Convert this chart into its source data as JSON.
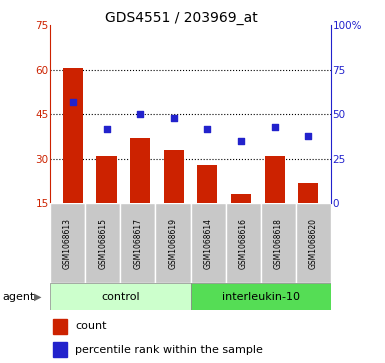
{
  "title": "GDS4551 / 203969_at",
  "samples": [
    "GSM1068613",
    "GSM1068615",
    "GSM1068617",
    "GSM1068619",
    "GSM1068614",
    "GSM1068616",
    "GSM1068618",
    "GSM1068620"
  ],
  "counts": [
    60.5,
    31.0,
    37.0,
    33.0,
    28.0,
    18.0,
    31.0,
    22.0
  ],
  "percentiles": [
    57,
    42,
    50,
    48,
    42,
    35,
    43,
    38
  ],
  "ylim_left": [
    15,
    75
  ],
  "ylim_right": [
    0,
    100
  ],
  "yticks_left": [
    15,
    30,
    45,
    60,
    75
  ],
  "yticks_right": [
    0,
    25,
    50,
    75,
    100
  ],
  "bar_color": "#cc2200",
  "dot_color": "#2222cc",
  "grid_color": "#000000",
  "control_color": "#ccffcc",
  "interleukin_color": "#55dd55",
  "control_label": "control",
  "interleukin_label": "interleukin-10",
  "agent_label": "agent",
  "legend_count": "count",
  "legend_percentile": "percentile rank within the sample"
}
